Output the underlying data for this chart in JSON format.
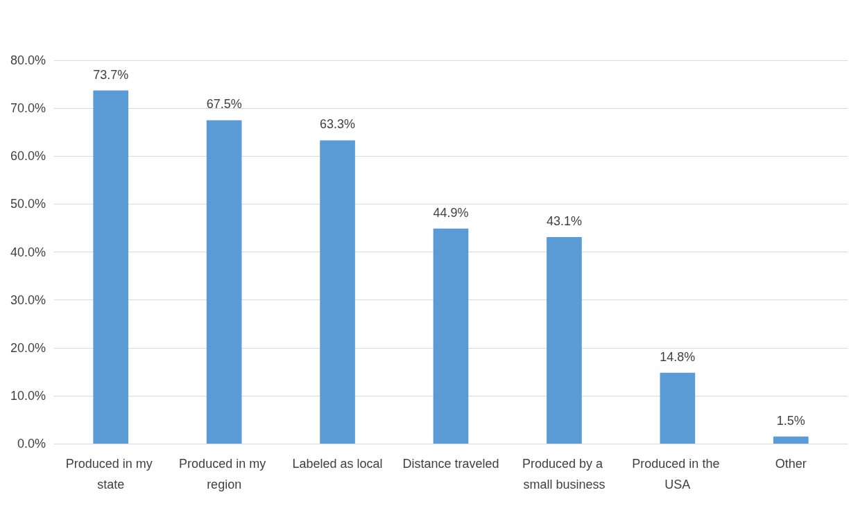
{
  "chart_data": {
    "type": "bar",
    "categories": [
      "Produced in my state",
      "Produced in my region",
      "Labeled as local",
      "Distance traveled",
      "Produced by a small business",
      "Produced in the USA",
      "Other"
    ],
    "values": [
      73.7,
      67.5,
      63.3,
      44.9,
      43.1,
      14.8,
      1.5
    ],
    "value_labels": [
      "73.7%",
      "67.5%",
      "63.3%",
      "44.9%",
      "43.1%",
      "14.8%",
      "1.5%"
    ],
    "color": "#5b9bd5",
    "ylim": [
      0,
      80
    ],
    "yticks": [
      {
        "value": 0,
        "label": "0.0%"
      },
      {
        "value": 10,
        "label": "10.0%"
      },
      {
        "value": 20,
        "label": "20.0%"
      },
      {
        "value": 30,
        "label": "30.0%"
      },
      {
        "value": 40,
        "label": "40.0%"
      },
      {
        "value": 50,
        "label": "50.0%"
      },
      {
        "value": 60,
        "label": "60.0%"
      },
      {
        "value": 70,
        "label": "70.0%"
      },
      {
        "value": 80,
        "label": "80.0%"
      }
    ],
    "grid": true
  }
}
